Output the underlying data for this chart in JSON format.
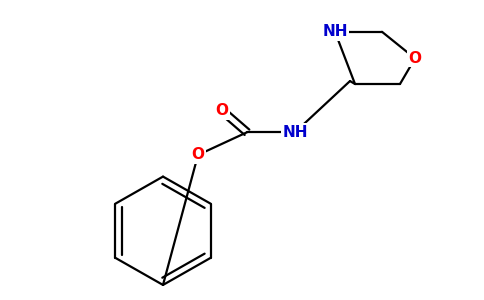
{
  "bg_color": "#ffffff",
  "bond_color": "#000000",
  "N_color": "#0000cd",
  "O_color": "#ff0000",
  "bond_width": 1.6,
  "font_size_atom": 11,
  "fig_width": 4.84,
  "fig_height": 3.0,
  "dpi": 100,
  "xlim": [
    0,
    9.5
  ],
  "ylim": [
    0,
    5.8
  ]
}
